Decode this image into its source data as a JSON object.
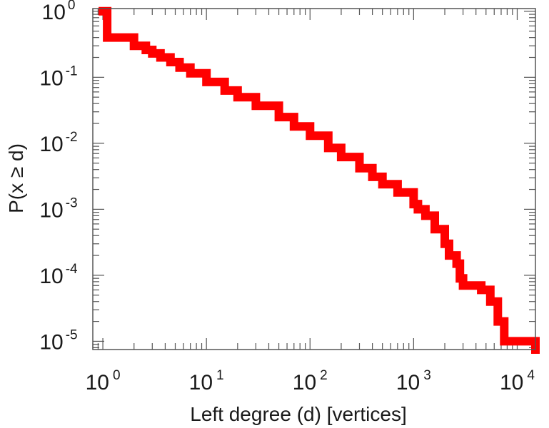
{
  "chart_data": {
    "type": "line",
    "title": "",
    "xlabel": "Left degree (d) [vertices]",
    "ylabel": "P(x ≥ d)",
    "xscale": "log",
    "yscale": "log",
    "xlim": [
      0.8,
      15000
    ],
    "ylim": [
      7.5e-06,
      1.1
    ],
    "grid": false,
    "legend": "none",
    "xticks": [
      {
        "value": 1,
        "base": "10",
        "exp": "0"
      },
      {
        "value": 10,
        "base": "10",
        "exp": "1"
      },
      {
        "value": 100,
        "base": "10",
        "exp": "2"
      },
      {
        "value": 1000,
        "base": "10",
        "exp": "3"
      },
      {
        "value": 10000,
        "base": "10",
        "exp": "4"
      }
    ],
    "yticks": [
      {
        "value": 1,
        "base": "10",
        "exp": "0"
      },
      {
        "value": 0.1,
        "base": "10",
        "exp": "-1"
      },
      {
        "value": 0.01,
        "base": "10",
        "exp": "-2"
      },
      {
        "value": 0.001,
        "base": "10",
        "exp": "-3"
      },
      {
        "value": 0.0001,
        "base": "10",
        "exp": "-4"
      },
      {
        "value": 1e-05,
        "base": "10",
        "exp": "-5"
      }
    ],
    "series": [
      {
        "color": "#ff0000",
        "x": [
          1,
          1.1,
          2,
          2.6,
          3,
          3.6,
          4.5,
          5.5,
          7,
          10,
          15,
          20,
          30,
          50,
          70,
          100,
          150,
          200,
          300,
          400,
          500,
          700,
          1000,
          1100,
          1300,
          1600,
          2000,
          2200,
          2600,
          2800,
          3000,
          3500,
          4500,
          5500,
          6500,
          7500,
          10000,
          15000
        ],
        "y": [
          1,
          0.4,
          0.3,
          0.26,
          0.23,
          0.2,
          0.17,
          0.14,
          0.115,
          0.085,
          0.063,
          0.05,
          0.037,
          0.025,
          0.018,
          0.013,
          0.0085,
          0.0062,
          0.0042,
          0.0031,
          0.0024,
          0.0018,
          0.0012,
          0.001,
          0.0008,
          0.0005,
          0.0003,
          0.0002,
          0.00015,
          9e-05,
          7e-05,
          7e-05,
          6e-05,
          4e-05,
          2e-05,
          1e-05,
          1e-05,
          7.5e-06
        ]
      }
    ]
  }
}
